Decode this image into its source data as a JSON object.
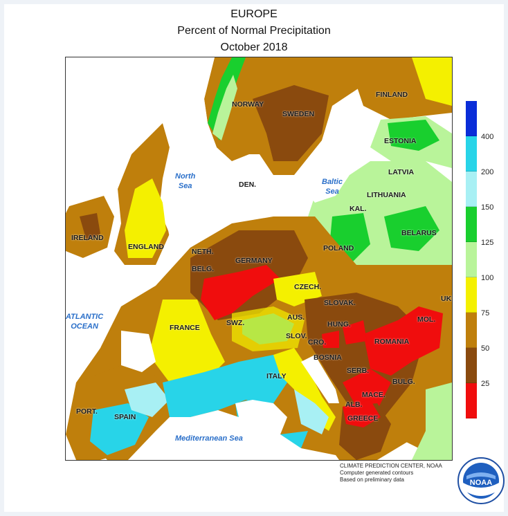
{
  "title": {
    "line1": "EUROPE",
    "line2": "Percent of Normal Precipitation",
    "line3": "October 2018"
  },
  "countries": [
    {
      "name": "NORWAY",
      "pos": "norway"
    },
    {
      "name": "SWEDEN",
      "pos": "sweden"
    },
    {
      "name": "FINLAND",
      "pos": "finland"
    },
    {
      "name": "ESTONIA",
      "pos": "estonia"
    },
    {
      "name": "LATVIA",
      "pos": "latvia"
    },
    {
      "name": "LITHUANIA",
      "pos": "lithuania"
    },
    {
      "name": "DEN.",
      "pos": "den"
    },
    {
      "name": "KAL.",
      "pos": "kal"
    },
    {
      "name": "BELARUS",
      "pos": "belarus"
    },
    {
      "name": "IRELAND",
      "pos": "ireland"
    },
    {
      "name": "ENGLAND",
      "pos": "england"
    },
    {
      "name": "NETH.",
      "pos": "neth"
    },
    {
      "name": "GERMANY",
      "pos": "germany"
    },
    {
      "name": "POLAND",
      "pos": "poland"
    },
    {
      "name": "BELG.",
      "pos": "belg"
    },
    {
      "name": "CZECH.",
      "pos": "czech"
    },
    {
      "name": "UKR",
      "pos": "ukr"
    },
    {
      "name": "SLOVAK.",
      "pos": "slovak"
    },
    {
      "name": "FRANCE",
      "pos": "france"
    },
    {
      "name": "SWZ.",
      "pos": "swz"
    },
    {
      "name": "AUS.",
      "pos": "aus"
    },
    {
      "name": "HUNG.",
      "pos": "hung"
    },
    {
      "name": "MOL.",
      "pos": "mol"
    },
    {
      "name": "SLOV.",
      "pos": "slov"
    },
    {
      "name": "CRO.",
      "pos": "cro"
    },
    {
      "name": "ROMANIA",
      "pos": "romania"
    },
    {
      "name": "BOSNIA",
      "pos": "bosnia"
    },
    {
      "name": "ITALY",
      "pos": "italy"
    },
    {
      "name": "SERB.",
      "pos": "serb"
    },
    {
      "name": "BULG.",
      "pos": "bulg"
    },
    {
      "name": "MACE.",
      "pos": "mace"
    },
    {
      "name": "ALB.",
      "pos": "alb"
    },
    {
      "name": "GREECE",
      "pos": "greece"
    },
    {
      "name": "PORT.",
      "pos": "port"
    },
    {
      "name": "SPAIN",
      "pos": "spain"
    }
  ],
  "water_bodies": [
    {
      "line1": "North",
      "line2": "Sea",
      "pos": "northsea"
    },
    {
      "line1": "Baltic",
      "line2": "Sea",
      "pos": "baltic"
    },
    {
      "line1": "ATLANTIC",
      "line2": "OCEAN",
      "pos": "atlantic"
    },
    {
      "line1": "Mediterranean Sea",
      "line2": "",
      "pos": "med"
    }
  ],
  "legend": {
    "labels": [
      "400",
      "200",
      "150",
      "125",
      "100",
      "75",
      "50",
      "25"
    ],
    "colors": [
      "#0a2dd8",
      "#28d4e8",
      "#a8f0f4",
      "#19cf2e",
      "#b9f49a",
      "#f4f000",
      "#bf7f0c",
      "#8a4a0e",
      "#f00d0d"
    ]
  },
  "credit": {
    "line1": "CLIMATE PREDICTION CENTER, NOAA",
    "line2": "Computer generated contours",
    "line3": "Based on preliminary data"
  },
  "logo": {
    "text": "NOAA"
  }
}
